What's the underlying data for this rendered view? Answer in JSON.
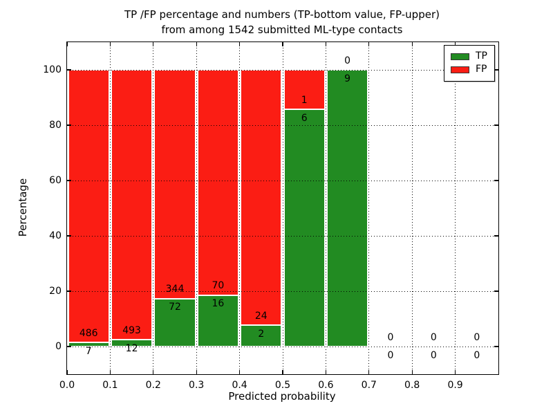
{
  "chart_data": {
    "type": "bar",
    "stacked": true,
    "title_line1": "TP /FP percentage and numbers (TP-bottom value, FP-upper)",
    "title_line2": "from among 1542 submitted ML-type contacts",
    "xlabel": "Predicted probability",
    "ylabel": "Percentage",
    "total_contacts": 1542,
    "xlim": [
      0.0,
      1.0
    ],
    "ylim": [
      -10,
      110
    ],
    "bin_width": 0.1,
    "categories": [
      "0.0",
      "0.1",
      "0.2",
      "0.3",
      "0.4",
      "0.5",
      "0.6",
      "0.7",
      "0.8",
      "0.9"
    ],
    "xticks": [
      0.0,
      0.1,
      0.2,
      0.3,
      0.4,
      0.5,
      0.6,
      0.7,
      0.8,
      0.9
    ],
    "xtick_labels": [
      "0.0",
      "0.1",
      "0.2",
      "0.3",
      "0.4",
      "0.5",
      "0.6",
      "0.7",
      "0.8",
      "0.9"
    ],
    "yticks": [
      0,
      20,
      40,
      60,
      80,
      100
    ],
    "ytick_labels": [
      "0",
      "20",
      "40",
      "60",
      "80",
      "100"
    ],
    "grid": "dotted",
    "legend_position": "upper right",
    "series": [
      {
        "name": "TP",
        "color": "#228b22",
        "counts": [
          7,
          12,
          72,
          16,
          2,
          6,
          9,
          0,
          0,
          0
        ]
      },
      {
        "name": "FP",
        "color": "#fb1d14",
        "counts": [
          486,
          493,
          344,
          70,
          24,
          1,
          0,
          0,
          0,
          0
        ]
      }
    ]
  }
}
